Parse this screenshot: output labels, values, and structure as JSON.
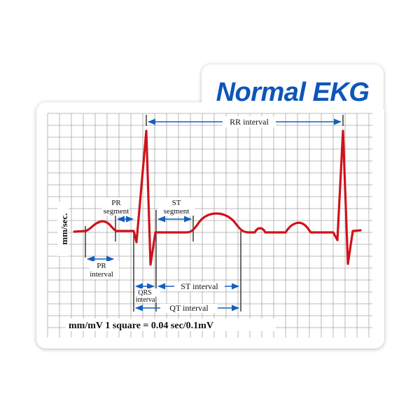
{
  "title": "Normal EKG",
  "axis_label": "mm/sec.",
  "scale_note": "mm/mV 1 square = 0.04 sec/0.1mV",
  "annotations": {
    "rr_interval": "RR interval",
    "pr_segment_line1": "PR",
    "pr_segment_line2": "segment",
    "st_segment_line1": "ST",
    "st_segment_line2": "segment",
    "pr_interval_line1": "PR",
    "pr_interval_line2": "interval",
    "qrs_interval_line1": "QRS",
    "qrs_interval_line2": "interval",
    "st_interval": "ST interval",
    "qt_interval": "QT interval"
  },
  "colors": {
    "title": "#0d56b8",
    "trace": "#d0121b",
    "arrow": "#1560bd",
    "grid": "#a6a6a6",
    "marker": "#333333",
    "text": "#111111"
  }
}
